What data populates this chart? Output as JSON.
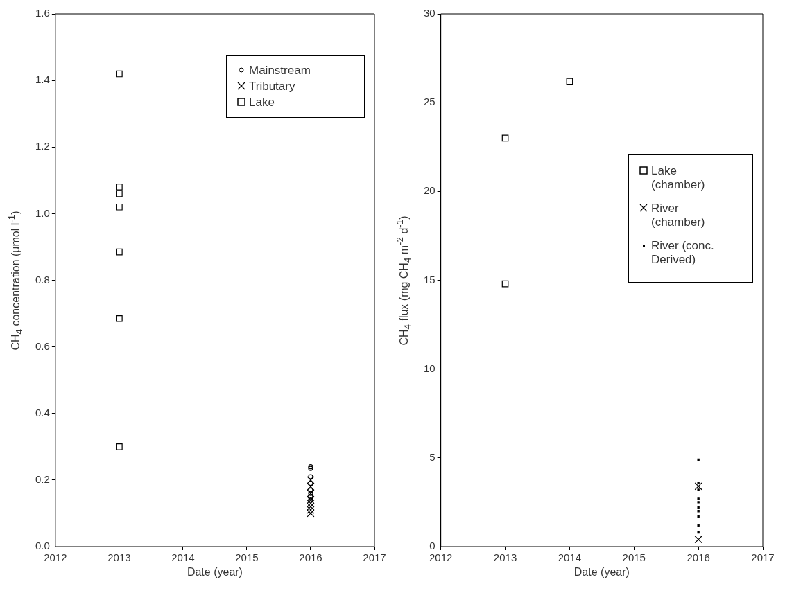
{
  "chart_data": [
    {
      "type": "scatter",
      "xlabel": "Date (year)",
      "ylabel": "CH$_{4}$ concentration (µmol l$^{-1}$)",
      "xlim": [
        2012,
        2017
      ],
      "xticks": [
        2012,
        2013,
        2014,
        2015,
        2016,
        2017
      ],
      "ylim": [
        0,
        1.6
      ],
      "yticks": [
        {
          "value": 0,
          "label": "0.0"
        },
        {
          "value": 0.2,
          "label": "0.2"
        },
        {
          "value": 0.4,
          "label": "0.4"
        },
        {
          "value": 0.6,
          "label": "0.6"
        },
        {
          "value": 0.8,
          "label": "0.8"
        },
        {
          "value": 1,
          "label": "1.0"
        },
        {
          "value": 1.2,
          "label": "1.2"
        },
        {
          "value": 1.4,
          "label": "1.4"
        },
        {
          "value": 1.6,
          "label": "1.6"
        }
      ],
      "grid": false,
      "legend": "top right",
      "series": [
        {
          "name": "Mainstream",
          "color": "#000000",
          "marker": "circle",
          "x": [
            2016,
            2016,
            2016,
            2016,
            2016,
            2016,
            2016,
            2016
          ],
          "values": [
            0.24,
            0.235,
            0.21,
            0.19,
            0.17,
            0.16,
            0.15,
            0.14
          ]
        },
        {
          "name": "Tributary",
          "color": "#000000",
          "marker": "cross",
          "x": [
            2016,
            2016,
            2016,
            2016,
            2016,
            2016,
            2016,
            2016
          ],
          "values": [
            0.2,
            0.18,
            0.16,
            0.14,
            0.13,
            0.12,
            0.11,
            0.1
          ]
        },
        {
          "name": "Lake",
          "color": "#000000",
          "marker": "square",
          "x": [
            2013,
            2013,
            2013,
            2013,
            2013,
            2013,
            2013
          ],
          "values": [
            1.42,
            1.08,
            1.06,
            1.02,
            0.885,
            0.685,
            0.3
          ]
        }
      ]
    },
    {
      "type": "scatter",
      "xlabel": "Date (year)",
      "ylabel": "CH$_{4}$ flux (mg CH$_{4}$ m$^{-2}$ d$^{-1}$)",
      "xlim": [
        2012,
        2017
      ],
      "xticks": [
        2012,
        2013,
        2014,
        2015,
        2016,
        2017
      ],
      "ylim": [
        0,
        30
      ],
      "yticks": [
        0,
        5,
        10,
        15,
        20,
        25,
        30
      ],
      "grid": false,
      "legend": "right",
      "series": [
        {
          "name": "Lake (chamber)",
          "color": "#000000",
          "marker": "square",
          "x": [
            2013,
            2013,
            2014
          ],
          "values": [
            23,
            14.8,
            26.2
          ]
        },
        {
          "name": "River (chamber)",
          "color": "#000000",
          "marker": "cross",
          "x": [
            2016,
            2016
          ],
          "values": [
            3.4,
            0.4
          ]
        },
        {
          "name": "River (conc. Derived)",
          "color": "#000000",
          "x": [
            2016,
            2016,
            2016,
            2016,
            2016,
            2016,
            2016,
            2016,
            2016,
            2016
          ],
          "values": [
            4.9,
            3.6,
            3.2,
            2.7,
            2.5,
            2.2,
            2.0,
            1.7,
            1.2,
            0.8
          ]
        }
      ]
    }
  ]
}
